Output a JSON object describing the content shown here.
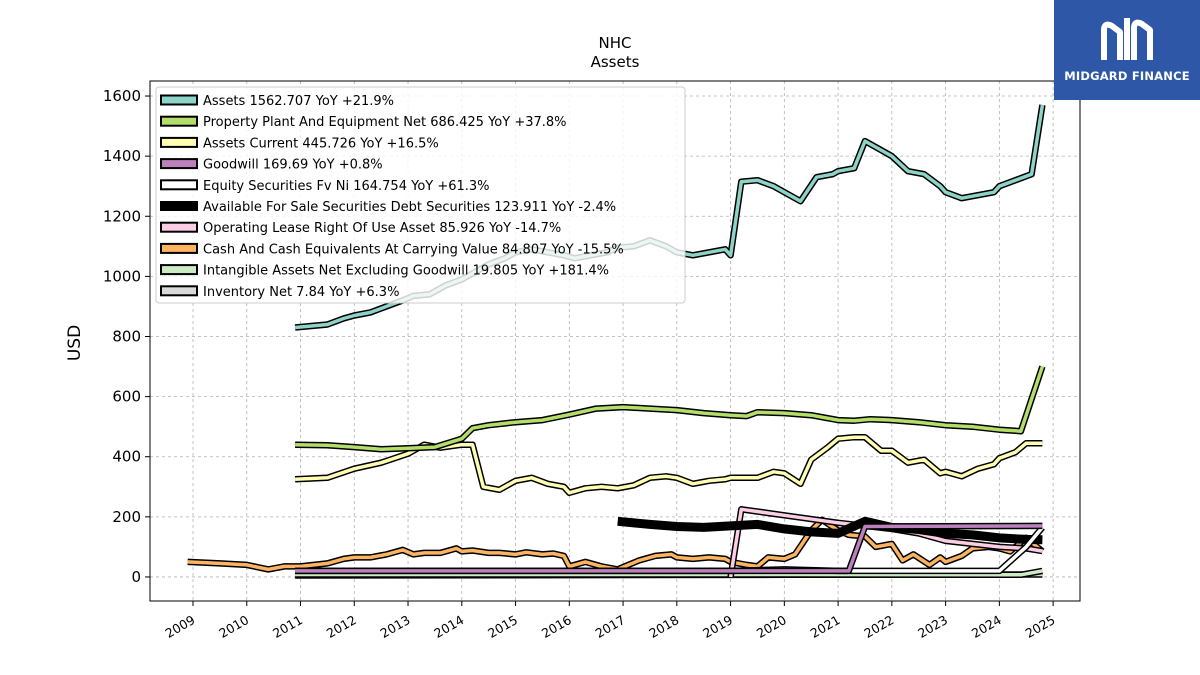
{
  "brand": {
    "name": "MIDGARD FINANCE",
    "bg_color": "#2f57a8",
    "icon": "midgard-logo-icon"
  },
  "chart_data": {
    "type": "line",
    "title": "NHC",
    "subtitle": "Assets",
    "ylabel": "USD",
    "xlabel": "",
    "xlim": [
      2008.2,
      2025.5
    ],
    "ylim": [
      -80,
      1650
    ],
    "yticks": [
      0,
      200,
      400,
      600,
      800,
      1000,
      1200,
      1400,
      1600
    ],
    "xticks": [
      "2009",
      "2010",
      "2011",
      "2012",
      "2013",
      "2014",
      "2015",
      "2016",
      "2017",
      "2018",
      "2019",
      "2020",
      "2021",
      "2022",
      "2023",
      "2024",
      "2025"
    ],
    "grid": true,
    "legend_position": "top-left",
    "series": [
      {
        "name": "Assets",
        "legend": "Assets  1562.707 YoY +21.9%",
        "color": "#8dd3c7",
        "x": [
          2010.9,
          2011.2,
          2011.5,
          2011.8,
          2012.0,
          2012.3,
          2012.6,
          2012.9,
          2013.1,
          2013.4,
          2013.7,
          2014.0,
          2014.2,
          2014.5,
          2014.8,
          2015.0,
          2015.3,
          2015.6,
          2015.9,
          2016.1,
          2016.4,
          2016.7,
          2016.9,
          2017.2,
          2017.5,
          2017.8,
          2018.0,
          2018.3,
          2018.6,
          2018.9,
          2019.0,
          2019.2,
          2019.5,
          2019.8,
          2020.0,
          2020.3,
          2020.6,
          2020.9,
          2021.0,
          2021.3,
          2021.5,
          2021.8,
          2022.0,
          2022.3,
          2022.6,
          2022.9,
          2023.0,
          2023.3,
          2023.6,
          2023.9,
          2024.0,
          2024.3,
          2024.6,
          2024.8
        ],
        "y": [
          830,
          835,
          840,
          860,
          870,
          880,
          900,
          920,
          935,
          940,
          970,
          990,
          1010,
          1040,
          1060,
          1080,
          1090,
          1080,
          1070,
          1060,
          1070,
          1080,
          1095,
          1100,
          1120,
          1100,
          1080,
          1070,
          1080,
          1090,
          1070,
          1315,
          1320,
          1300,
          1280,
          1250,
          1330,
          1340,
          1350,
          1360,
          1450,
          1420,
          1400,
          1350,
          1340,
          1300,
          1280,
          1260,
          1270,
          1280,
          1300,
          1320,
          1340,
          1570
        ]
      },
      {
        "name": "Property Plant And Equipment Net",
        "legend": "Property Plant And Equipment Net  686.425 YoY +37.8%",
        "color": "#b3de69",
        "x": [
          2010.9,
          2011.5,
          2012.0,
          2012.5,
          2013.0,
          2013.5,
          2014.0,
          2014.2,
          2014.5,
          2015.0,
          2015.5,
          2016.0,
          2016.5,
          2017.0,
          2017.5,
          2018.0,
          2018.5,
          2019.0,
          2019.3,
          2019.5,
          2020.0,
          2020.5,
          2021.0,
          2021.3,
          2021.6,
          2022.0,
          2022.5,
          2023.0,
          2023.5,
          2024.0,
          2024.4,
          2024.8
        ],
        "y": [
          440,
          438,
          432,
          425,
          428,
          432,
          460,
          495,
          505,
          515,
          522,
          540,
          560,
          565,
          560,
          555,
          545,
          538,
          535,
          548,
          545,
          538,
          522,
          520,
          525,
          522,
          515,
          505,
          500,
          490,
          485,
          700
        ]
      },
      {
        "name": "Assets Current",
        "legend": "Assets Current  445.726 YoY +16.5%",
        "color": "#ffffb3",
        "x": [
          2010.9,
          2011.5,
          2012.0,
          2012.5,
          2013.0,
          2013.3,
          2013.6,
          2014.0,
          2014.2,
          2014.4,
          2014.7,
          2015.0,
          2015.3,
          2015.6,
          2015.9,
          2016.0,
          2016.3,
          2016.6,
          2016.9,
          2017.2,
          2017.5,
          2017.8,
          2018.0,
          2018.3,
          2018.6,
          2018.9,
          2019.0,
          2019.3,
          2019.5,
          2019.8,
          2020.0,
          2020.3,
          2020.5,
          2020.8,
          2021.0,
          2021.3,
          2021.5,
          2021.8,
          2022.0,
          2022.3,
          2022.6,
          2022.9,
          2023.0,
          2023.3,
          2023.6,
          2023.9,
          2024.0,
          2024.3,
          2024.5,
          2024.8
        ],
        "y": [
          325,
          330,
          360,
          380,
          410,
          440,
          430,
          440,
          440,
          300,
          290,
          320,
          330,
          310,
          300,
          280,
          295,
          300,
          295,
          305,
          330,
          335,
          330,
          310,
          320,
          325,
          330,
          330,
          330,
          350,
          345,
          310,
          390,
          430,
          460,
          465,
          465,
          420,
          420,
          380,
          390,
          345,
          350,
          335,
          360,
          375,
          395,
          415,
          445,
          445
        ]
      },
      {
        "name": "Goodwill",
        "legend": "Goodwill  169.69 YoY +0.8%",
        "color": "#bc80bd",
        "x": [
          2010.9,
          2021.2,
          2021.5,
          2024.8
        ],
        "y": [
          20,
          20,
          168,
          170
        ]
      },
      {
        "name": "Equity Securities Fv Ni",
        "legend": "Equity Securities Fv Ni  164.754 YoY +61.3%",
        "color": "#ffffff",
        "x": [
          2010.9,
          2012.0,
          2014.0,
          2016.0,
          2018.0,
          2019.0,
          2020.0,
          2021.0,
          2022.0,
          2023.0,
          2024.0,
          2024.5,
          2024.8
        ],
        "y": [
          20,
          20,
          20,
          20,
          20,
          20,
          25,
          20,
          20,
          20,
          20,
          100,
          165
        ]
      },
      {
        "name": "Available For Sale Securities Debt Securities",
        "legend": "Available For Sale Securities Debt Securities  123.911 YoY -2.4%",
        "color": "#000000",
        "x": [
          2016.9,
          2017.5,
          2018.0,
          2018.5,
          2019.0,
          2019.5,
          2020.0,
          2020.5,
          2021.0,
          2021.5,
          2022.0,
          2022.5,
          2023.0,
          2023.5,
          2024.0,
          2024.5,
          2024.8
        ],
        "y": [
          185,
          175,
          168,
          165,
          170,
          175,
          160,
          150,
          145,
          185,
          165,
          158,
          145,
          140,
          130,
          125,
          124
        ]
      },
      {
        "name": "Operating Lease Right Of Use Asset",
        "legend": "Operating Lease Right Of Use Asset  85.926 YoY -14.7%",
        "color": "#fccde5",
        "x": [
          2019.0,
          2019.2,
          2020.0,
          2021.0,
          2022.0,
          2022.5,
          2023.0,
          2023.5,
          2024.0,
          2024.5,
          2024.8
        ],
        "y": [
          0,
          225,
          205,
          180,
          160,
          145,
          120,
          110,
          100,
          95,
          86
        ]
      },
      {
        "name": "Cash And Cash Equivalents At Carrying Value",
        "legend": "Cash And Cash Equivalents At Carrying Value  84.807 YoY -15.5%",
        "color": "#fdb462",
        "x": [
          2008.9,
          2009.5,
          2010.0,
          2010.4,
          2010.7,
          2011.0,
          2011.5,
          2011.8,
          2012.0,
          2012.3,
          2012.6,
          2012.9,
          2013.1,
          2013.3,
          2013.6,
          2013.9,
          2014.0,
          2014.2,
          2014.5,
          2014.7,
          2015.0,
          2015.2,
          2015.5,
          2015.7,
          2015.9,
          2016.0,
          2016.3,
          2016.6,
          2016.9,
          2017.1,
          2017.3,
          2017.6,
          2017.9,
          2018.0,
          2018.3,
          2018.6,
          2018.9,
          2019.0,
          2019.3,
          2019.5,
          2019.7,
          2020.0,
          2020.2,
          2020.5,
          2020.7,
          2021.0,
          2021.2,
          2021.5,
          2021.7,
          2022.0,
          2022.2,
          2022.4,
          2022.7,
          2022.9,
          2023.0,
          2023.3,
          2023.5,
          2023.8,
          2024.0,
          2024.2,
          2024.5,
          2024.8
        ],
        "y": [
          50,
          45,
          40,
          25,
          35,
          35,
          45,
          60,
          65,
          65,
          75,
          90,
          75,
          80,
          80,
          95,
          85,
          88,
          80,
          80,
          75,
          82,
          75,
          78,
          70,
          35,
          50,
          35,
          25,
          40,
          55,
          70,
          75,
          65,
          60,
          65,
          60,
          50,
          40,
          35,
          65,
          60,
          75,
          155,
          190,
          155,
          140,
          135,
          100,
          110,
          55,
          75,
          40,
          65,
          50,
          70,
          95,
          100,
          95,
          85,
          130,
          85
        ]
      },
      {
        "name": "Intangible Assets Net Excluding Goodwill",
        "legend": "Intangible Assets Net Excluding Goodwill  19.805 YoY +181.4%",
        "color": "#ccebc5",
        "x": [
          2010.9,
          2015.0,
          2020.0,
          2024.4,
          2024.8
        ],
        "y": [
          8,
          8,
          8,
          7,
          20
        ]
      },
      {
        "name": "Inventory Net",
        "legend": "Inventory Net  7.84 YoY +6.3%",
        "color": "#d9d9d9",
        "x": [
          2010.9,
          2015.0,
          2020.0,
          2024.8
        ],
        "y": [
          5,
          6,
          7,
          8
        ]
      }
    ]
  }
}
